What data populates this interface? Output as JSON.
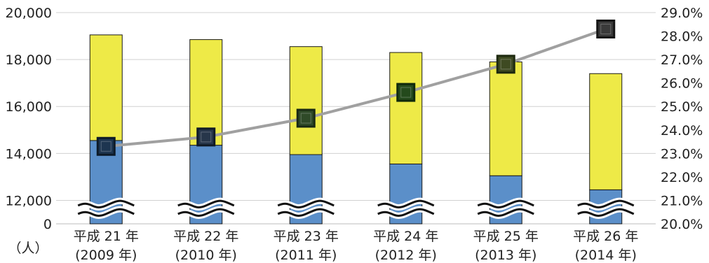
{
  "chart_data": {
    "type": "bar",
    "stacked": true,
    "axis_break": true,
    "categories": [
      [
        "平成 21 年",
        "(2009 年)"
      ],
      [
        "平成 22 年",
        "(2010 年)"
      ],
      [
        "平成 23 年",
        "(2011 年)"
      ],
      [
        "平成 24 年",
        "(2012 年)"
      ],
      [
        "平成 25 年",
        "(2013 年)"
      ],
      [
        "平成 26 年",
        "(2014 年)"
      ]
    ],
    "series": [
      {
        "values": [
          14550,
          14350,
          13950,
          13550,
          13050,
          12450
        ],
        "color": "#5b8fc9",
        "axis": "left"
      },
      {
        "values": [
          4500,
          4500,
          4600,
          4750,
          4850,
          4950
        ],
        "color": "#eeea47",
        "axis": "left"
      },
      {
        "type": "line",
        "values": [
          23.3,
          23.7,
          24.5,
          25.6,
          26.8,
          28.3
        ],
        "color": "#a0a0a0",
        "marker": "square",
        "axis": "right"
      }
    ],
    "y_left": {
      "unit": "（人）",
      "ticks": [
        "0",
        "12,000",
        "14,000",
        "16,000",
        "18,000",
        "20,000"
      ],
      "tick_values": [
        11000,
        12000,
        14000,
        16000,
        18000,
        20000
      ],
      "ylim": [
        11000,
        20000
      ]
    },
    "y_right": {
      "ticks": [
        "20.0%",
        "21.0%",
        "22.0%",
        "23.0%",
        "24.0%",
        "25.0%",
        "26.0%",
        "27.0%",
        "28.0%",
        "29.0%"
      ],
      "tick_values": [
        20,
        21,
        22,
        23,
        24,
        25,
        26,
        27,
        28,
        29
      ],
      "ylim": [
        20,
        29
      ]
    },
    "grid": true
  }
}
